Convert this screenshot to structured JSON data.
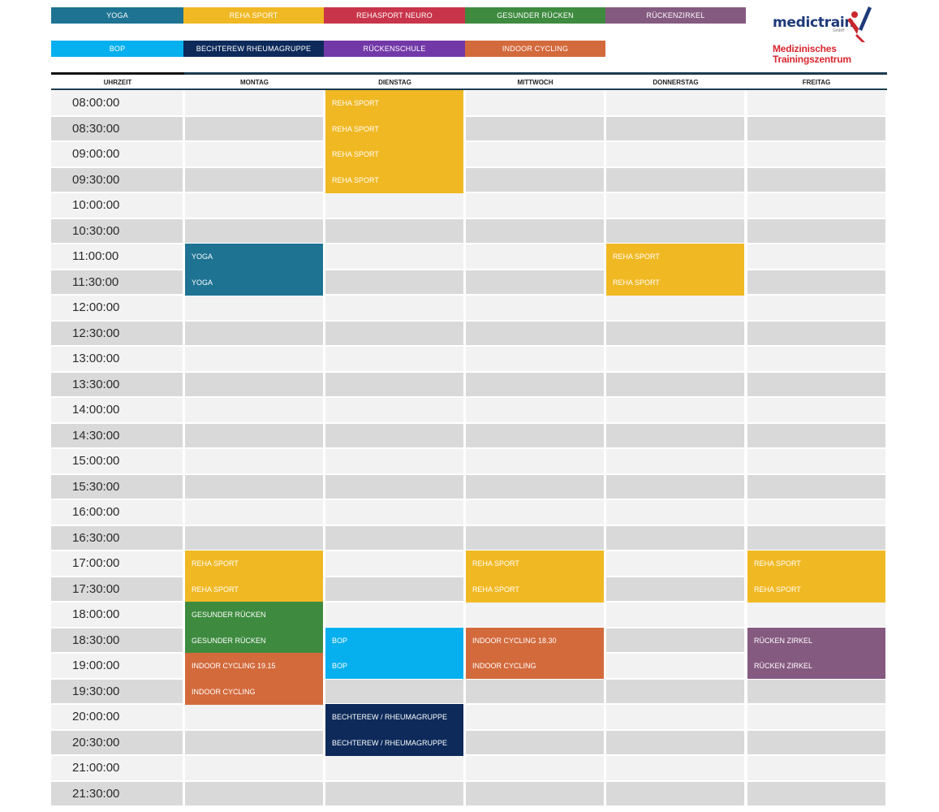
{
  "legend": {
    "row1": [
      {
        "label": "YOGA",
        "color": "#1e7392"
      },
      {
        "label": "REHA SPORT",
        "color": "#f0b823"
      },
      {
        "label": "REHASPORT NEURO",
        "color": "#c8354a"
      },
      {
        "label": "GESUNDER RÜCKEN",
        "color": "#3e8b3f"
      },
      {
        "label": "RÜCKENZIRKEL",
        "color": "#855a80"
      }
    ],
    "row2": [
      {
        "label": "BOP",
        "color": "#06b0ee"
      },
      {
        "label": "BECHTEREW RHEUMAGRUPPE",
        "color": "#0d2a5a"
      },
      {
        "label": "RÜCKENSCHULE",
        "color": "#7338a8"
      },
      {
        "label": "INDOOR CYCLING",
        "color": "#d36a3c"
      }
    ]
  },
  "logo": {
    "brand": "medictrain",
    "suffix": "GmbH",
    "line1": "Medizinisches",
    "line2": "Trainingszentrum"
  },
  "header": {
    "time": "UHRZEIT",
    "days": [
      "MONTAG",
      "DIENSTAG",
      "MITTWOCH",
      "DONNERSTAG",
      "FREITAG"
    ]
  },
  "times": [
    "08:00:00",
    "08:30:00",
    "09:00:00",
    "09:30:00",
    "10:00:00",
    "10:30:00",
    "11:00:00",
    "11:30:00",
    "12:00:00",
    "12:30:00",
    "13:00:00",
    "13:30:00",
    "14:00:00",
    "14:30:00",
    "15:00:00",
    "15:30:00",
    "16:00:00",
    "16:30:00",
    "17:00:00",
    "17:30:00",
    "18:00:00",
    "18:30:00",
    "19:00:00",
    "19:30:00",
    "20:00:00",
    "20:30:00",
    "21:00:00",
    "21:30:00"
  ],
  "events": [
    {
      "day": 1,
      "slot": 0,
      "label": "REHA SPORT",
      "color": "#f0b823"
    },
    {
      "day": 1,
      "slot": 1,
      "label": "REHA SPORT",
      "color": "#f0b823"
    },
    {
      "day": 1,
      "slot": 2,
      "label": "REHA SPORT",
      "color": "#f0b823"
    },
    {
      "day": 1,
      "slot": 3,
      "label": "REHA SPORT",
      "color": "#f0b823"
    },
    {
      "day": 0,
      "slot": 6,
      "label": "YOGA",
      "color": "#1e7392"
    },
    {
      "day": 0,
      "slot": 7,
      "label": "YOGA",
      "color": "#1e7392"
    },
    {
      "day": 3,
      "slot": 6,
      "label": "REHA SPORT",
      "color": "#f0b823"
    },
    {
      "day": 3,
      "slot": 7,
      "label": "REHA SPORT",
      "color": "#f0b823"
    },
    {
      "day": 0,
      "slot": 18,
      "label": "REHA SPORT",
      "color": "#f0b823"
    },
    {
      "day": 0,
      "slot": 19,
      "label": "REHA SPORT",
      "color": "#f0b823"
    },
    {
      "day": 2,
      "slot": 18,
      "label": "REHA SPORT",
      "color": "#f0b823"
    },
    {
      "day": 2,
      "slot": 19,
      "label": "REHA SPORT",
      "color": "#f0b823"
    },
    {
      "day": 4,
      "slot": 18,
      "label": "REHA SPORT",
      "color": "#f0b823"
    },
    {
      "day": 4,
      "slot": 19,
      "label": "REHA SPORT",
      "color": "#f0b823"
    },
    {
      "day": 0,
      "slot": 20,
      "label": "GESUNDER RÜCKEN",
      "color": "#3e8b3f"
    },
    {
      "day": 0,
      "slot": 21,
      "label": "GESUNDER RÜCKEN",
      "color": "#3e8b3f"
    },
    {
      "day": 1,
      "slot": 21,
      "label": "BOP",
      "color": "#06b0ee"
    },
    {
      "day": 1,
      "slot": 22,
      "label": "BOP",
      "color": "#06b0ee"
    },
    {
      "day": 2,
      "slot": 21,
      "label": "INDOOR CYCLING 18.30",
      "color": "#d36a3c"
    },
    {
      "day": 2,
      "slot": 22,
      "label": "INDOOR CYCLING",
      "color": "#d36a3c"
    },
    {
      "day": 4,
      "slot": 21,
      "label": "RÜCKEN ZIRKEL",
      "color": "#855a80"
    },
    {
      "day": 4,
      "slot": 22,
      "label": "RÜCKEN ZIRKEL",
      "color": "#855a80"
    },
    {
      "day": 0,
      "slot": 22,
      "label": "INDOOR CYCLING 19.15",
      "color": "#d36a3c"
    },
    {
      "day": 0,
      "slot": 23,
      "label": "INDOOR CYCLING",
      "color": "#d36a3c"
    },
    {
      "day": 1,
      "slot": 24,
      "label": "BECHTEREW / RHEUMAGRUPPE",
      "color": "#0d2a5a"
    },
    {
      "day": 1,
      "slot": 25,
      "label": "BECHTEREW / RHEUMAGRUPPE",
      "color": "#0d2a5a"
    }
  ]
}
